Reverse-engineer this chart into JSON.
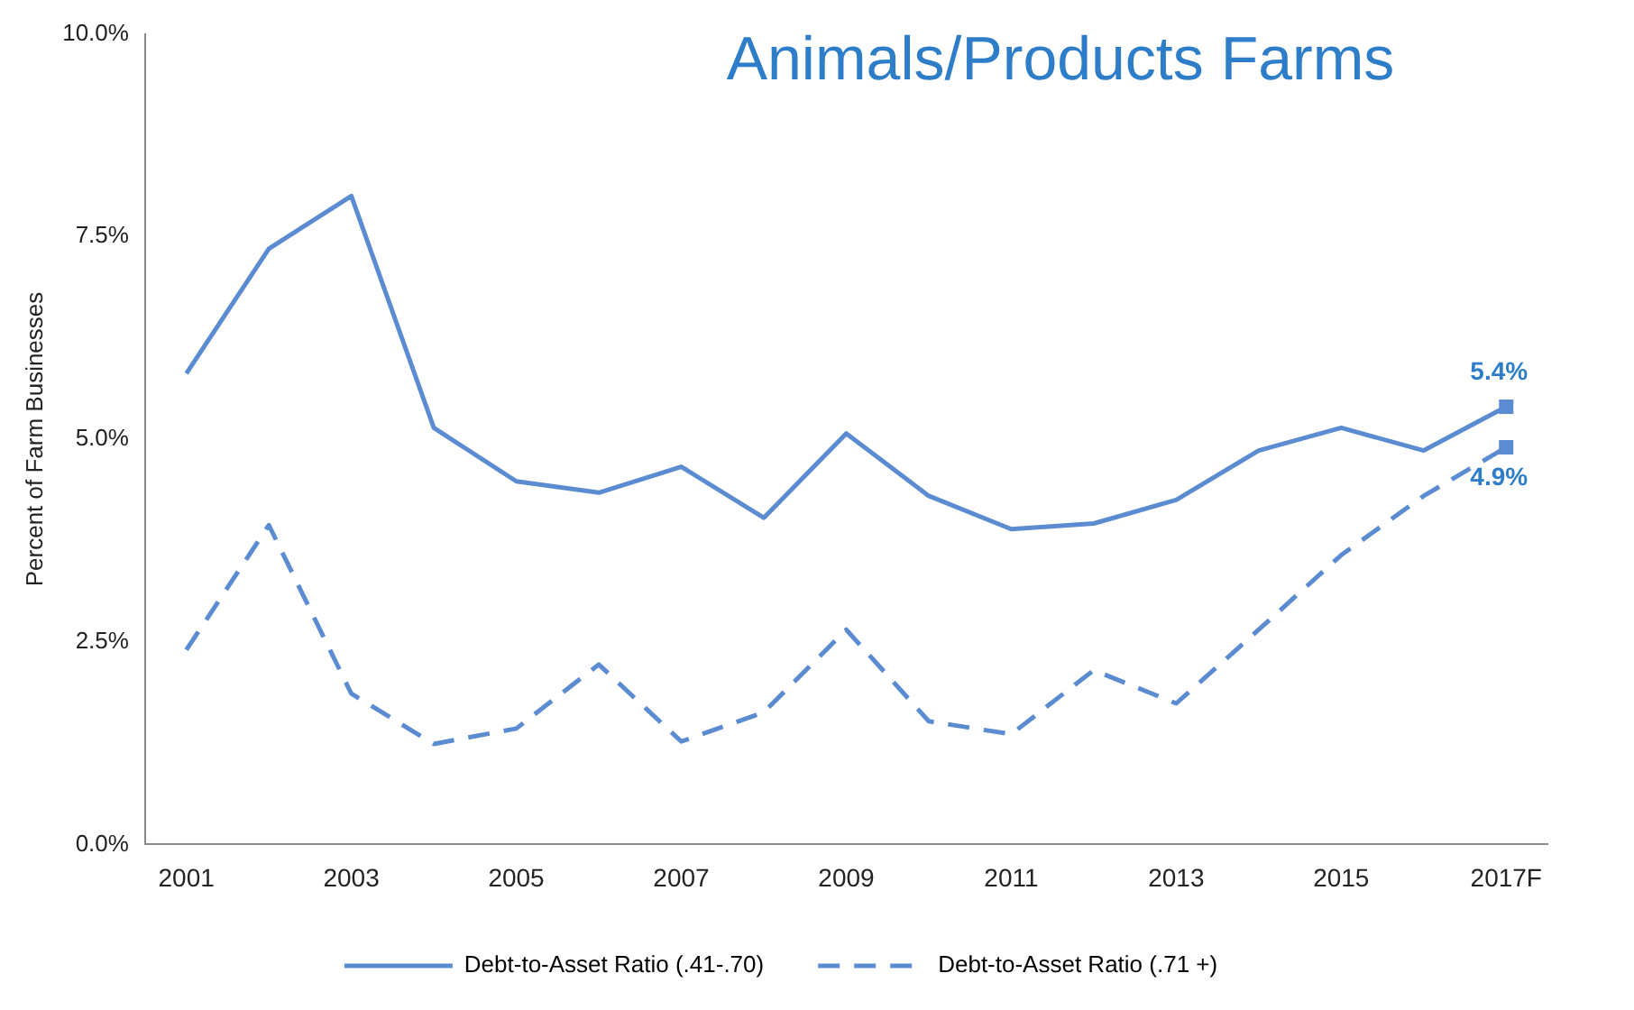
{
  "chart_data": {
    "type": "line",
    "title": "Animals/Products Farms",
    "ylabel": "Percent of Farm Businesses",
    "categories": [
      "2001",
      null,
      "2003",
      null,
      "2005",
      null,
      "2007",
      null,
      "2009",
      null,
      "2011",
      null,
      "2013",
      null,
      "2015",
      null,
      "2017F"
    ],
    "series": [
      {
        "name": "Debt-to-Asset Ratio (.41-.70)",
        "color": "#5b8bd0",
        "line_style": "solid",
        "values": [
          5.81,
          7.35,
          8.0,
          5.14,
          4.48,
          4.34,
          4.66,
          4.03,
          5.07,
          4.3,
          3.89,
          3.96,
          4.25,
          4.86,
          5.14,
          4.86,
          5.4
        ],
        "value_labels": [
          null,
          null,
          null,
          null,
          null,
          null,
          null,
          null,
          null,
          null,
          null,
          null,
          null,
          null,
          null,
          null,
          "5.4%"
        ]
      },
      {
        "name": "Debt-to-Asset Ratio (.71 +)",
        "color": "#5b8bd0",
        "line_style": "dashed",
        "values": [
          2.4,
          3.94,
          1.86,
          1.24,
          1.43,
          2.22,
          1.27,
          1.63,
          2.65,
          1.52,
          1.36,
          2.15,
          1.74,
          2.65,
          3.57,
          4.3,
          4.9
        ],
        "value_labels": [
          null,
          null,
          null,
          null,
          null,
          null,
          null,
          null,
          null,
          null,
          null,
          null,
          null,
          null,
          null,
          null,
          "4.9%"
        ]
      }
    ],
    "ylim": [
      0,
      10
    ],
    "yticks": [
      {
        "value": 0,
        "label": "0.0%"
      },
      {
        "value": 2.5,
        "label": "2.5%"
      },
      {
        "value": 5,
        "label": "5.0%"
      },
      {
        "value": 7.5,
        "label": "7.5%"
      },
      {
        "value": 10,
        "label": "10.0%"
      }
    ],
    "grid": false,
    "legend": "bottom"
  }
}
